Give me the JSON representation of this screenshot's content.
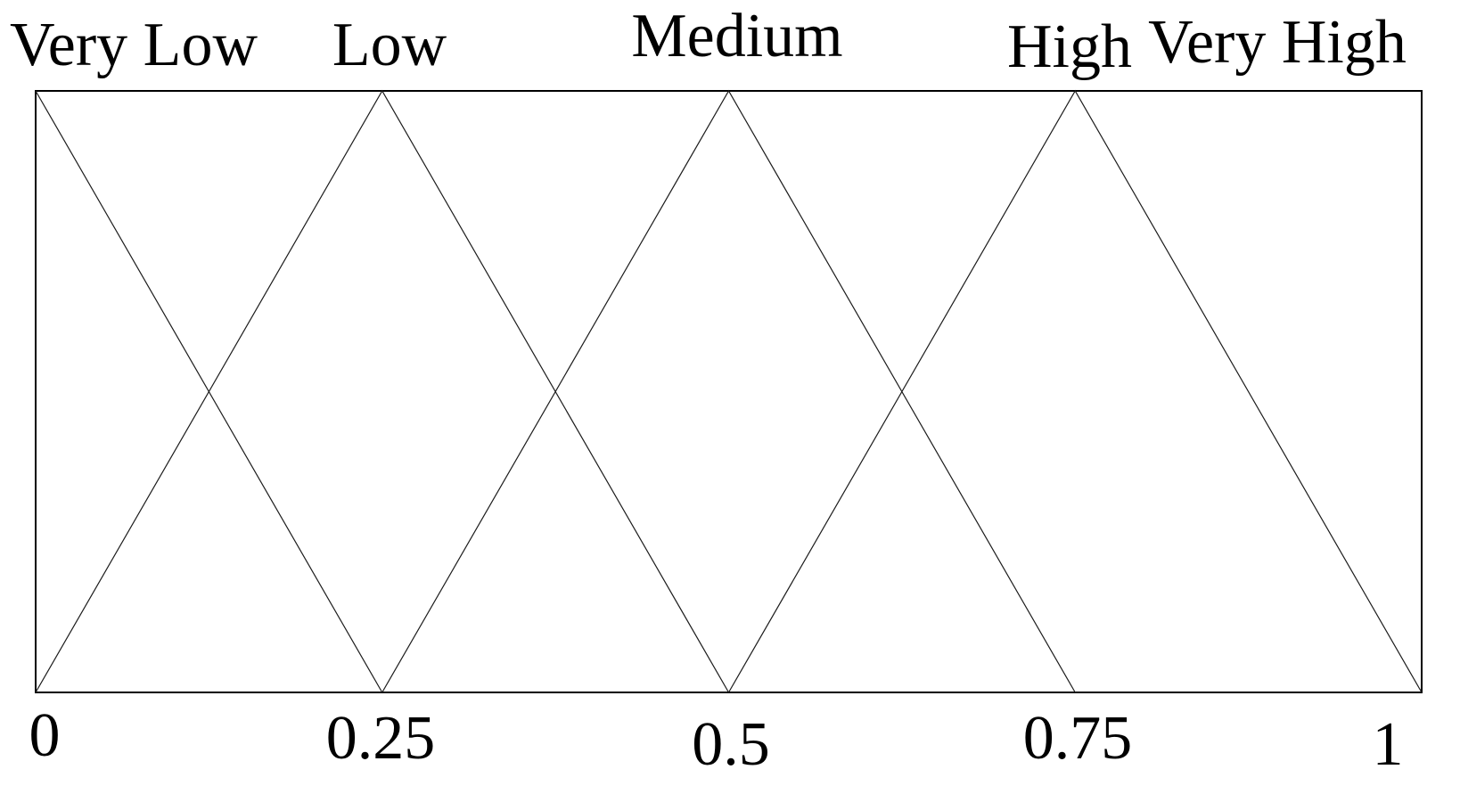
{
  "figure": {
    "background_color": "#ffffff",
    "frame_color": "#000000",
    "curve_color": "#1c1c1c",
    "text_color": "#000000"
  },
  "chart_data": {
    "type": "line",
    "title": "",
    "xlabel": "",
    "ylabel": "",
    "xlim": [
      0,
      1
    ],
    "ylim": [
      0,
      1
    ],
    "grid": false,
    "legend_position": "labels-above-peaks",
    "x_tick_values": [
      0,
      0.25,
      0.5,
      0.75,
      1
    ],
    "x_tick_labels": [
      "0",
      "0.25",
      "0.5",
      "0.75",
      "1"
    ],
    "series": [
      {
        "name": "Very Low",
        "points": [
          [
            0,
            1
          ],
          [
            0.25,
            0
          ]
        ]
      },
      {
        "name": "Low",
        "points": [
          [
            0,
            0
          ],
          [
            0.25,
            1
          ],
          [
            0.5,
            0
          ]
        ]
      },
      {
        "name": "Medium",
        "points": [
          [
            0.25,
            0
          ],
          [
            0.5,
            1
          ],
          [
            0.75,
            0
          ]
        ]
      },
      {
        "name": "High",
        "points": [
          [
            0.5,
            0
          ],
          [
            0.75,
            1
          ],
          [
            1,
            0
          ]
        ]
      },
      {
        "name": "Very High",
        "points": []
      }
    ]
  }
}
